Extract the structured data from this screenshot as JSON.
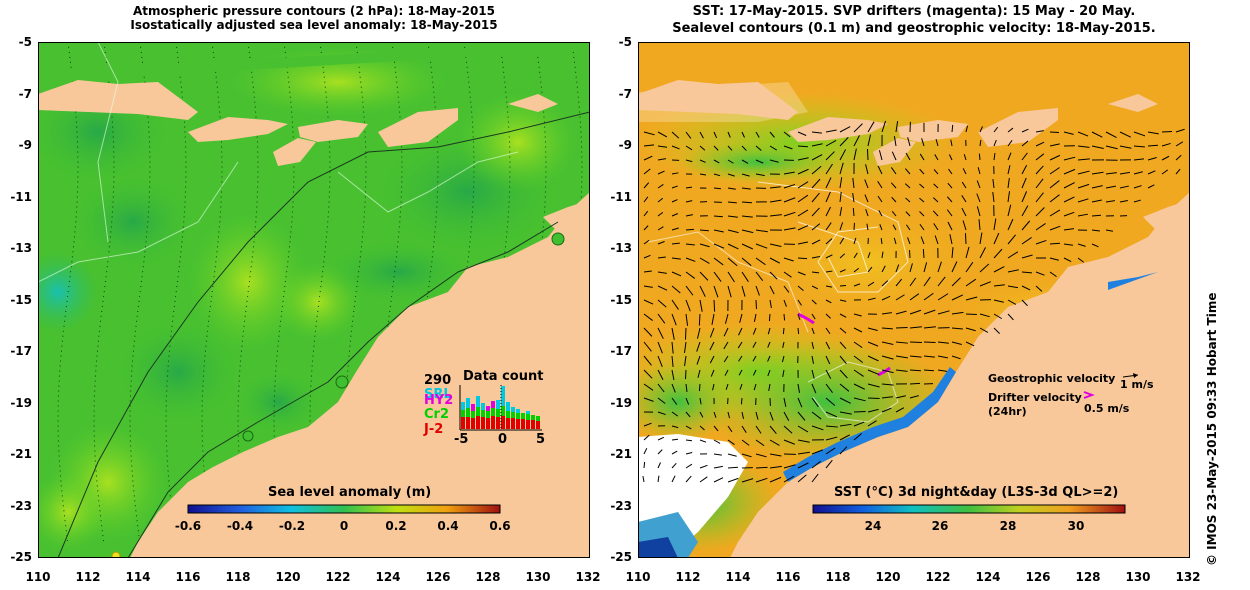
{
  "left": {
    "title_line1": "Atmospheric pressure contours (2 hPa): 18-May-2015",
    "title_line2": "Isostatically adjusted sea level anomaly: 18-May-2015",
    "colorbar": {
      "title": "Sea level anomaly (m)",
      "ticks": [
        "-0.6",
        "-0.4",
        "-0.2",
        "0",
        "0.2",
        "0.4",
        "0.6"
      ]
    },
    "inset": {
      "max_label": "290",
      "title": "Data count",
      "satellites": [
        {
          "name": "SRL",
          "color": "#00c8e0"
        },
        {
          "name": "HY2",
          "color": "#e000e0"
        },
        {
          "name": "Cr2",
          "color": "#00d000"
        },
        {
          "name": "J-2",
          "color": "#e00000"
        }
      ],
      "x_ticks": [
        "-5",
        "0",
        "5"
      ]
    }
  },
  "right": {
    "title_line1": "SST: 17-May-2015. SVP drifters (magenta): 15 May - 20 May.",
    "title_line2": "Sealevel contours (0.1 m) and geostrophic velocity: 18-May-2015.",
    "colorbar": {
      "title": "SST (°C) 3d night&day (L3S-3d QL>=2)",
      "ticks": [
        "24",
        "26",
        "28",
        "30"
      ]
    },
    "legend": {
      "geostrophic_label": "Geostrophic velocity",
      "geostrophic_value": "1 m/s",
      "drifter_label": "Drifter velocity",
      "drifter_sub": "(24hr)",
      "drifter_value": "0.5 m/s"
    }
  },
  "axes": {
    "y_ticks": [
      "-5",
      "-7",
      "-9",
      "-11",
      "-13",
      "-15",
      "-17",
      "-19",
      "-21",
      "-23",
      "-25"
    ],
    "x_ticks": [
      "110",
      "112",
      "114",
      "116",
      "118",
      "120",
      "122",
      "124",
      "126",
      "128",
      "130",
      "132"
    ]
  },
  "copyright": "© IMOS 23-May-2015 09:33 Hobart Time",
  "colors": {
    "land": "#f8c89a",
    "sla_bg": "#40c030",
    "sst_bg": "#f0a020"
  }
}
